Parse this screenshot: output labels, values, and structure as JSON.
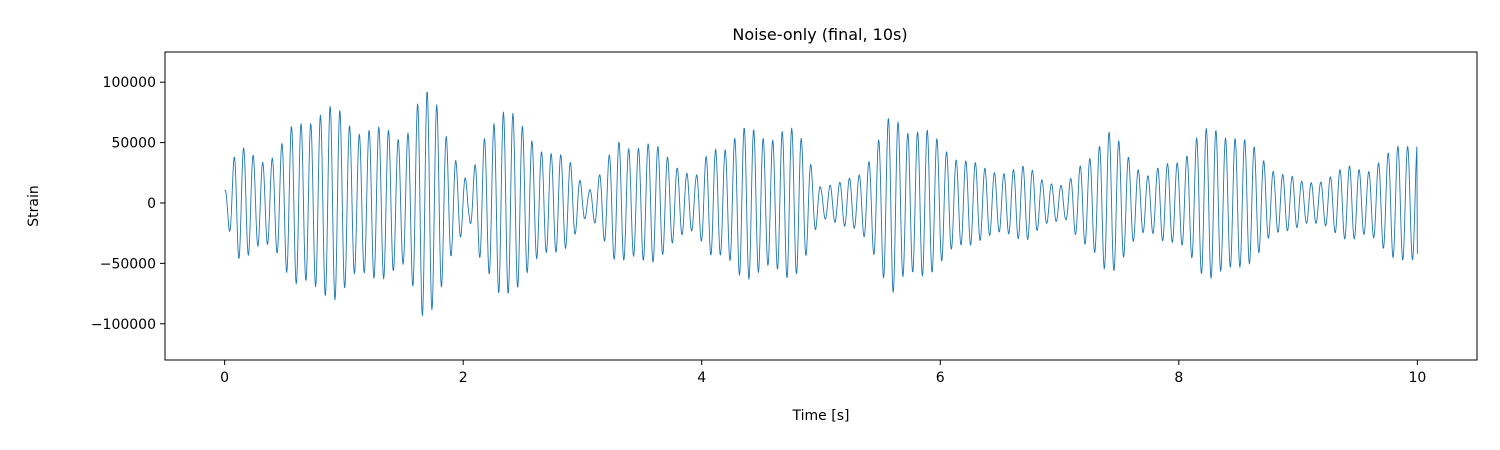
{
  "chart_data": {
    "type": "line",
    "title": "Noise-only (final, 10s)",
    "xlabel": "Time [s]",
    "ylabel": "Strain",
    "xlim": [
      -0.5,
      10.5
    ],
    "ylim": [
      -130000,
      125000
    ],
    "x_ticks": [
      {
        "value": 0,
        "label": "0"
      },
      {
        "value": 2,
        "label": "2"
      },
      {
        "value": 4,
        "label": "4"
      },
      {
        "value": 6,
        "label": "6"
      },
      {
        "value": 8,
        "label": "8"
      },
      {
        "value": 10,
        "label": "10"
      }
    ],
    "y_ticks": [
      {
        "value": -100000,
        "label": "−100000"
      },
      {
        "value": -50000,
        "label": "−50000"
      },
      {
        "value": 0,
        "label": "0"
      },
      {
        "value": 50000,
        "label": "50000"
      },
      {
        "value": 100000,
        "label": "100000"
      }
    ],
    "grid": false,
    "series": [
      {
        "color": "#1f77b4",
        "dominant_frequency_hz": 12.4,
        "envelope": {
          "t": [
            0.0,
            0.1,
            0.3,
            0.45,
            0.6,
            0.75,
            0.95,
            1.1,
            1.3,
            1.5,
            1.65,
            1.8,
            1.95,
            2.05,
            2.15,
            2.3,
            2.5,
            2.7,
            2.9,
            3.05,
            3.15,
            3.3,
            3.5,
            3.75,
            3.95,
            4.1,
            4.3,
            4.5,
            4.7,
            4.85,
            5.0,
            5.15,
            5.3,
            5.5,
            5.6,
            5.75,
            5.95,
            6.15,
            6.35,
            6.55,
            6.75,
            6.9,
            7.05,
            7.2,
            7.4,
            7.55,
            7.75,
            7.95,
            8.15,
            8.3,
            8.45,
            8.6,
            8.75,
            8.9,
            9.05,
            9.25,
            9.45,
            9.6,
            9.75,
            9.9,
            10.0
          ],
          "amp": [
            12000,
            50000,
            48000,
            58000,
            85000,
            98000,
            82000,
            70000,
            65000,
            72000,
            115000,
            108000,
            45000,
            15000,
            55000,
            92000,
            65000,
            55000,
            42000,
            15000,
            32000,
            60000,
            55000,
            40000,
            25000,
            60000,
            78000,
            72000,
            68000,
            55000,
            15000,
            18000,
            30000,
            70000,
            95000,
            82000,
            58000,
            42000,
            32000,
            35000,
            38000,
            25000,
            15000,
            40000,
            62000,
            48000,
            28000,
            45000,
            70000,
            72000,
            68000,
            50000,
            35000,
            28000,
            20000,
            30000,
            38000,
            35000,
            42000,
            55000,
            60000
          ]
        },
        "start_value": 10000,
        "end_value": -42000
      }
    ]
  }
}
